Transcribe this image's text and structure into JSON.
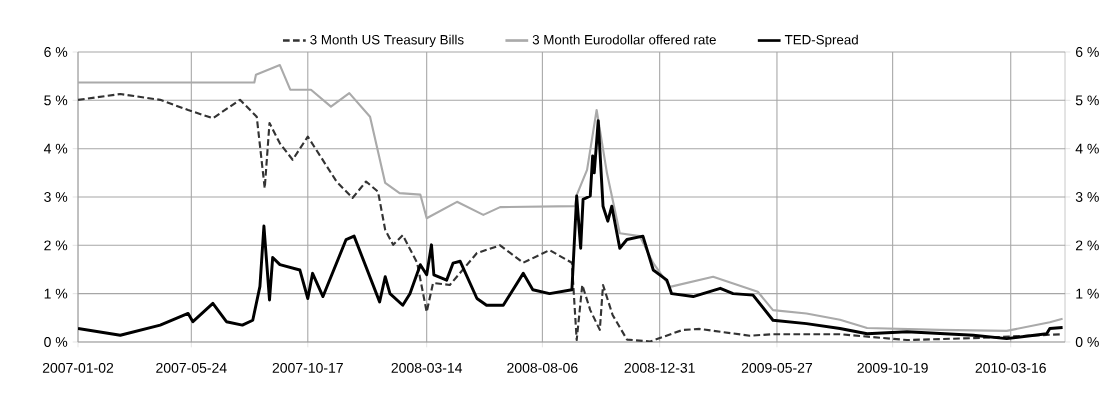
{
  "chart_data": {
    "type": "line",
    "xlim": [
      "2007-01-02",
      "2010-05-23"
    ],
    "xticks": [
      "2007-01-02",
      "2007-05-24",
      "2007-10-17",
      "2008-03-14",
      "2008-08-06",
      "2008-12-31",
      "2009-05-27",
      "2009-10-19",
      "2010-03-16"
    ],
    "ylim": [
      0,
      6
    ],
    "yticks": [
      {
        "value": 0,
        "label": "0 %"
      },
      {
        "value": 1,
        "label": "1 %"
      },
      {
        "value": 2,
        "label": "2 %"
      },
      {
        "value": 3,
        "label": "3 %"
      },
      {
        "value": 4,
        "label": "4 %"
      },
      {
        "value": 5,
        "label": "5 %"
      },
      {
        "value": 6,
        "label": "6 %"
      }
    ],
    "y2lim": [
      0,
      6
    ],
    "y2ticks": [
      {
        "value": 0,
        "label": "0 %"
      },
      {
        "value": 1,
        "label": "1 %"
      },
      {
        "value": 2,
        "label": "2 %"
      },
      {
        "value": 3,
        "label": "3 %"
      },
      {
        "value": 4,
        "label": "4 %"
      },
      {
        "value": 5,
        "label": "5 %"
      },
      {
        "value": 6,
        "label": "6 %"
      }
    ],
    "grid": true,
    "legend": "top",
    "marker": "none",
    "series": [
      {
        "name": "3 Month US Treasury Bills",
        "color": "#333333",
        "line_style": "dashed",
        "x": [
          "2007-01-02",
          "2007-02-24",
          "2007-04-15",
          "2007-05-20",
          "2007-06-20",
          "2007-07-24",
          "2007-08-14",
          "2007-08-24",
          "2007-08-30",
          "2007-09-12",
          "2007-09-28",
          "2007-10-17",
          "2007-11-10",
          "2007-11-22",
          "2007-12-12",
          "2007-12-29",
          "2008-01-13",
          "2008-01-22",
          "2008-02-01",
          "2008-02-13",
          "2008-03-02",
          "2008-03-14",
          "2008-03-22",
          "2008-04-12",
          "2008-05-16",
          "2008-06-14",
          "2008-07-13",
          "2008-08-15",
          "2008-09-12",
          "2008-09-18",
          "2008-09-25",
          "2008-10-05",
          "2008-10-17",
          "2008-10-21",
          "2008-11-02",
          "2008-11-20",
          "2008-12-19",
          "2009-01-29",
          "2009-02-19",
          "2009-04-23",
          "2009-05-22",
          "2009-08-14",
          "2009-11-06",
          "2010-01-28",
          "2010-04-22",
          "2010-05-20"
        ],
        "values": [
          5.01,
          5.13,
          5.01,
          4.8,
          4.63,
          5.01,
          4.66,
          3.18,
          4.53,
          4.11,
          3.77,
          4.25,
          3.63,
          3.32,
          2.98,
          3.32,
          3.11,
          2.32,
          2.01,
          2.21,
          1.64,
          0.62,
          1.22,
          1.18,
          1.84,
          2.0,
          1.64,
          1.9,
          1.64,
          0.04,
          1.18,
          0.66,
          0.25,
          1.18,
          0.56,
          0.05,
          0.01,
          0.25,
          0.27,
          0.13,
          0.16,
          0.16,
          0.04,
          0.08,
          0.14,
          0.16
        ]
      },
      {
        "name": "3 Month Eurodollar offered rate",
        "color": "#aaaaaa",
        "line_style": "solid",
        "x": [
          "2007-01-02",
          "2007-08-11",
          "2007-08-13",
          "2007-09-12",
          "2007-09-25",
          "2007-10-21",
          "2007-11-15",
          "2007-12-08",
          "2008-01-03",
          "2008-01-22",
          "2008-02-09",
          "2008-03-06",
          "2008-03-14",
          "2008-04-21",
          "2008-05-24",
          "2008-06-14",
          "2008-09-16",
          "2008-09-18",
          "2008-10-01",
          "2008-10-13",
          "2008-10-26",
          "2008-11-11",
          "2008-12-06",
          "2008-12-23",
          "2009-01-13",
          "2009-03-08",
          "2009-05-03",
          "2009-05-22",
          "2009-07-03",
          "2009-08-14",
          "2009-09-17",
          "2009-12-17",
          "2010-03-11",
          "2010-05-04",
          "2010-05-20"
        ],
        "values": [
          5.37,
          5.37,
          5.53,
          5.73,
          5.22,
          5.22,
          4.87,
          5.15,
          4.66,
          3.29,
          3.08,
          3.05,
          2.56,
          2.9,
          2.63,
          2.79,
          2.81,
          3.04,
          3.56,
          4.8,
          3.49,
          2.25,
          2.19,
          1.63,
          1.14,
          1.35,
          1.04,
          0.66,
          0.59,
          0.46,
          0.29,
          0.25,
          0.23,
          0.41,
          0.48
        ]
      },
      {
        "name": "TED-Spread",
        "color": "#000000",
        "line_style": "solid",
        "x": [
          "2007-01-02",
          "2007-02-24",
          "2007-04-15",
          "2007-05-20",
          "2007-05-26",
          "2007-06-20",
          "2007-07-07",
          "2007-07-27",
          "2007-08-09",
          "2007-08-18",
          "2007-08-23",
          "2007-08-30",
          "2007-09-03",
          "2007-09-12",
          "2007-10-07",
          "2007-10-17",
          "2007-10-23",
          "2007-11-05",
          "2007-12-04",
          "2007-12-14",
          "2008-01-15",
          "2008-01-22",
          "2008-01-28",
          "2008-02-13",
          "2008-02-22",
          "2008-03-06",
          "2008-03-14",
          "2008-03-20",
          "2008-03-23",
          "2008-04-08",
          "2008-04-16",
          "2008-04-25",
          "2008-05-16",
          "2008-05-28",
          "2008-06-18",
          "2008-07-13",
          "2008-07-25",
          "2008-08-15",
          "2008-09-12",
          "2008-09-18",
          "2008-09-23",
          "2008-09-26",
          "2008-10-05",
          "2008-10-08",
          "2008-10-10",
          "2008-10-15",
          "2008-10-21",
          "2008-10-27",
          "2008-11-01",
          "2008-11-11",
          "2008-11-20",
          "2008-12-10",
          "2008-12-23",
          "2009-01-09",
          "2009-01-15",
          "2009-02-11",
          "2009-03-17",
          "2009-04-02",
          "2009-04-27",
          "2009-05-22",
          "2009-07-03",
          "2009-08-14",
          "2009-09-17",
          "2009-11-06",
          "2010-01-28",
          "2010-03-11",
          "2010-04-30",
          "2010-05-04",
          "2010-05-20"
        ],
        "values": [
          0.28,
          0.14,
          0.35,
          0.59,
          0.42,
          0.8,
          0.42,
          0.35,
          0.45,
          1.15,
          2.4,
          0.87,
          1.75,
          1.6,
          1.49,
          0.9,
          1.42,
          0.94,
          2.12,
          2.19,
          0.83,
          1.35,
          1.0,
          0.76,
          1.0,
          1.6,
          1.39,
          2.01,
          1.39,
          1.28,
          1.63,
          1.67,
          0.9,
          0.76,
          0.76,
          1.42,
          1.08,
          1.0,
          1.08,
          3.02,
          1.94,
          2.95,
          3.02,
          3.85,
          3.5,
          4.58,
          2.81,
          2.5,
          2.81,
          1.94,
          2.12,
          2.19,
          1.49,
          1.28,
          1.0,
          0.94,
          1.11,
          1.0,
          0.97,
          0.45,
          0.38,
          0.28,
          0.17,
          0.21,
          0.14,
          0.07,
          0.17,
          0.28,
          0.3
        ]
      }
    ]
  }
}
